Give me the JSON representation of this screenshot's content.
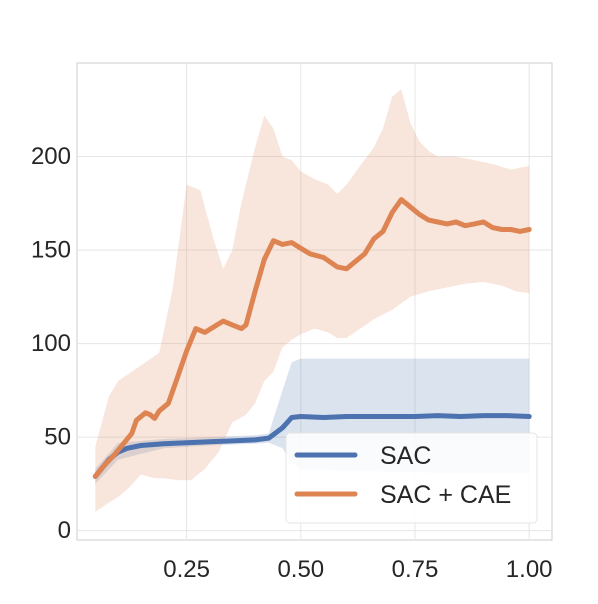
{
  "chart_data": {
    "type": "line",
    "title": "",
    "xlabel": "",
    "ylabel": "",
    "xlim": [
      0.01,
      1.05
    ],
    "ylim": [
      -5,
      250
    ],
    "grid": true,
    "legend_position": "bottom-right",
    "x_ticks": [
      0.25,
      0.5,
      0.75,
      1.0
    ],
    "x_tick_labels": [
      "0.25",
      "0.50",
      "0.75",
      "1.00"
    ],
    "y_ticks": [
      0,
      50,
      100,
      150,
      200
    ],
    "y_tick_labels": [
      "0",
      "50",
      "100",
      "150",
      "200"
    ],
    "series": [
      {
        "name": "SAC",
        "color": "#4c72b0",
        "points": [
          [
            0.05,
            29
          ],
          [
            0.08,
            38
          ],
          [
            0.1,
            42
          ],
          [
            0.12,
            44
          ],
          [
            0.15,
            45.5
          ],
          [
            0.2,
            46.5
          ],
          [
            0.25,
            47
          ],
          [
            0.3,
            47.5
          ],
          [
            0.35,
            48
          ],
          [
            0.4,
            48.5
          ],
          [
            0.43,
            49.5
          ],
          [
            0.46,
            55
          ],
          [
            0.48,
            60.5
          ],
          [
            0.5,
            61
          ],
          [
            0.55,
            60.5
          ],
          [
            0.6,
            61
          ],
          [
            0.65,
            61
          ],
          [
            0.7,
            61
          ],
          [
            0.75,
            61
          ],
          [
            0.8,
            61.5
          ],
          [
            0.85,
            61
          ],
          [
            0.9,
            61.5
          ],
          [
            0.95,
            61.5
          ],
          [
            1.0,
            61
          ]
        ],
        "band_upper": [
          [
            0.05,
            33
          ],
          [
            0.1,
            47
          ],
          [
            0.2,
            49
          ],
          [
            0.3,
            50
          ],
          [
            0.4,
            51
          ],
          [
            0.43,
            52
          ],
          [
            0.46,
            75
          ],
          [
            0.48,
            90
          ],
          [
            0.5,
            92
          ],
          [
            0.6,
            92
          ],
          [
            0.7,
            92
          ],
          [
            0.8,
            92
          ],
          [
            0.9,
            92
          ],
          [
            1.0,
            92
          ]
        ],
        "band_lower": [
          [
            0.05,
            25
          ],
          [
            0.1,
            38
          ],
          [
            0.2,
            44
          ],
          [
            0.3,
            45.5
          ],
          [
            0.4,
            46.5
          ],
          [
            0.43,
            47
          ],
          [
            0.46,
            44
          ],
          [
            0.48,
            36
          ],
          [
            0.5,
            33
          ],
          [
            0.6,
            32
          ],
          [
            0.7,
            31.5
          ],
          [
            0.8,
            31
          ],
          [
            0.9,
            31
          ],
          [
            1.0,
            31
          ]
        ]
      },
      {
        "name": "SAC + CAE",
        "color": "#dd8452",
        "points": [
          [
            0.05,
            29
          ],
          [
            0.07,
            35
          ],
          [
            0.09,
            40
          ],
          [
            0.11,
            46
          ],
          [
            0.13,
            52
          ],
          [
            0.14,
            59
          ],
          [
            0.16,
            63
          ],
          [
            0.17,
            62
          ],
          [
            0.18,
            60
          ],
          [
            0.19,
            64
          ],
          [
            0.21,
            68
          ],
          [
            0.23,
            82
          ],
          [
            0.25,
            96
          ],
          [
            0.27,
            108
          ],
          [
            0.29,
            106
          ],
          [
            0.31,
            109
          ],
          [
            0.33,
            112
          ],
          [
            0.35,
            110
          ],
          [
            0.37,
            108
          ],
          [
            0.38,
            110
          ],
          [
            0.4,
            128
          ],
          [
            0.42,
            145
          ],
          [
            0.44,
            155
          ],
          [
            0.46,
            153
          ],
          [
            0.48,
            154
          ],
          [
            0.5,
            151
          ],
          [
            0.52,
            148
          ],
          [
            0.55,
            146
          ],
          [
            0.58,
            141
          ],
          [
            0.6,
            140
          ],
          [
            0.62,
            144
          ],
          [
            0.64,
            148
          ],
          [
            0.66,
            156
          ],
          [
            0.68,
            160
          ],
          [
            0.7,
            170
          ],
          [
            0.72,
            177
          ],
          [
            0.74,
            173
          ],
          [
            0.76,
            169
          ],
          [
            0.78,
            166
          ],
          [
            0.8,
            165
          ],
          [
            0.82,
            164
          ],
          [
            0.84,
            165
          ],
          [
            0.86,
            163
          ],
          [
            0.88,
            164
          ],
          [
            0.9,
            165
          ],
          [
            0.92,
            162
          ],
          [
            0.94,
            161
          ],
          [
            0.96,
            161
          ],
          [
            0.98,
            160
          ],
          [
            1.0,
            161
          ]
        ],
        "band_upper": [
          [
            0.05,
            45
          ],
          [
            0.08,
            72
          ],
          [
            0.1,
            80
          ],
          [
            0.13,
            85
          ],
          [
            0.16,
            90
          ],
          [
            0.19,
            95
          ],
          [
            0.22,
            130
          ],
          [
            0.25,
            185
          ],
          [
            0.28,
            182
          ],
          [
            0.31,
            155
          ],
          [
            0.33,
            140
          ],
          [
            0.35,
            150
          ],
          [
            0.37,
            175
          ],
          [
            0.4,
            205
          ],
          [
            0.42,
            222
          ],
          [
            0.44,
            215
          ],
          [
            0.46,
            200
          ],
          [
            0.48,
            198
          ],
          [
            0.5,
            192
          ],
          [
            0.53,
            188
          ],
          [
            0.56,
            185
          ],
          [
            0.58,
            180
          ],
          [
            0.6,
            185
          ],
          [
            0.63,
            195
          ],
          [
            0.66,
            205
          ],
          [
            0.68,
            215
          ],
          [
            0.7,
            232
          ],
          [
            0.72,
            236
          ],
          [
            0.74,
            218
          ],
          [
            0.76,
            208
          ],
          [
            0.78,
            203
          ],
          [
            0.8,
            200
          ],
          [
            0.84,
            200
          ],
          [
            0.88,
            198
          ],
          [
            0.92,
            196
          ],
          [
            0.96,
            193
          ],
          [
            1.0,
            195
          ]
        ],
        "band_lower": [
          [
            0.05,
            10
          ],
          [
            0.08,
            15
          ],
          [
            0.1,
            18
          ],
          [
            0.12,
            22
          ],
          [
            0.15,
            30
          ],
          [
            0.18,
            28
          ],
          [
            0.2,
            28
          ],
          [
            0.23,
            27
          ],
          [
            0.26,
            27
          ],
          [
            0.29,
            33
          ],
          [
            0.32,
            42
          ],
          [
            0.35,
            58
          ],
          [
            0.38,
            62
          ],
          [
            0.4,
            68
          ],
          [
            0.42,
            80
          ],
          [
            0.44,
            85
          ],
          [
            0.46,
            98
          ],
          [
            0.48,
            102
          ],
          [
            0.5,
            105
          ],
          [
            0.53,
            108
          ],
          [
            0.56,
            106
          ],
          [
            0.58,
            103
          ],
          [
            0.6,
            103
          ],
          [
            0.63,
            108
          ],
          [
            0.66,
            113
          ],
          [
            0.7,
            118
          ],
          [
            0.74,
            125
          ],
          [
            0.78,
            128
          ],
          [
            0.82,
            130
          ],
          [
            0.86,
            132
          ],
          [
            0.9,
            133
          ],
          [
            0.94,
            131
          ],
          [
            0.97,
            128
          ],
          [
            1.0,
            127
          ]
        ]
      }
    ]
  }
}
